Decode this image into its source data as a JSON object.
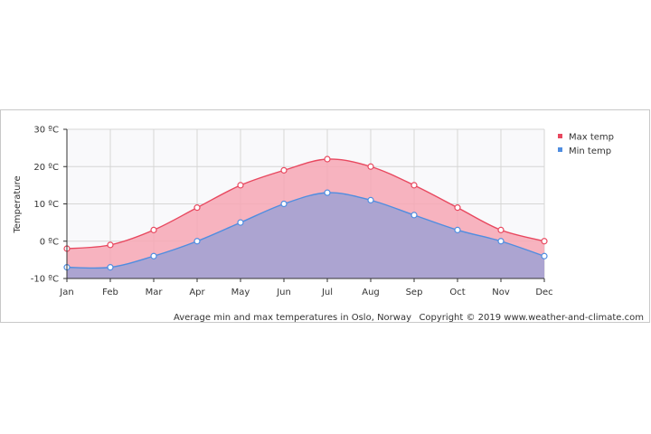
{
  "chart_data": {
    "type": "area",
    "categories": [
      "Jan",
      "Feb",
      "Mar",
      "Apr",
      "May",
      "Jun",
      "Jul",
      "Aug",
      "Sep",
      "Oct",
      "Nov",
      "Dec"
    ],
    "series": [
      {
        "name": "Max temp",
        "color": "#e8485f",
        "fill": "#f7a7b4",
        "values": [
          -2,
          -1,
          3,
          9,
          15,
          19,
          22,
          20,
          15,
          9,
          3,
          0
        ]
      },
      {
        "name": "Min temp",
        "color": "#4f8de0",
        "fill": "#a8a3d2",
        "values": [
          -7,
          -7,
          -4,
          0,
          5,
          10,
          13,
          11,
          7,
          3,
          0,
          -4
        ]
      }
    ],
    "ylabel": "Temperature",
    "ylim": [
      -10,
      30
    ],
    "yticks": [
      30,
      20,
      10,
      0,
      -10
    ],
    "ytick_labels": [
      "30 ºC",
      "20 ºC",
      "10 ºC",
      "0 ºC",
      "-10 ºC"
    ],
    "grid": true,
    "legend_position": "right",
    "caption": "Average min and max temperatures in Oslo, Norway",
    "copyright": "Copyright © 2019 www.weather-and-climate.com"
  }
}
